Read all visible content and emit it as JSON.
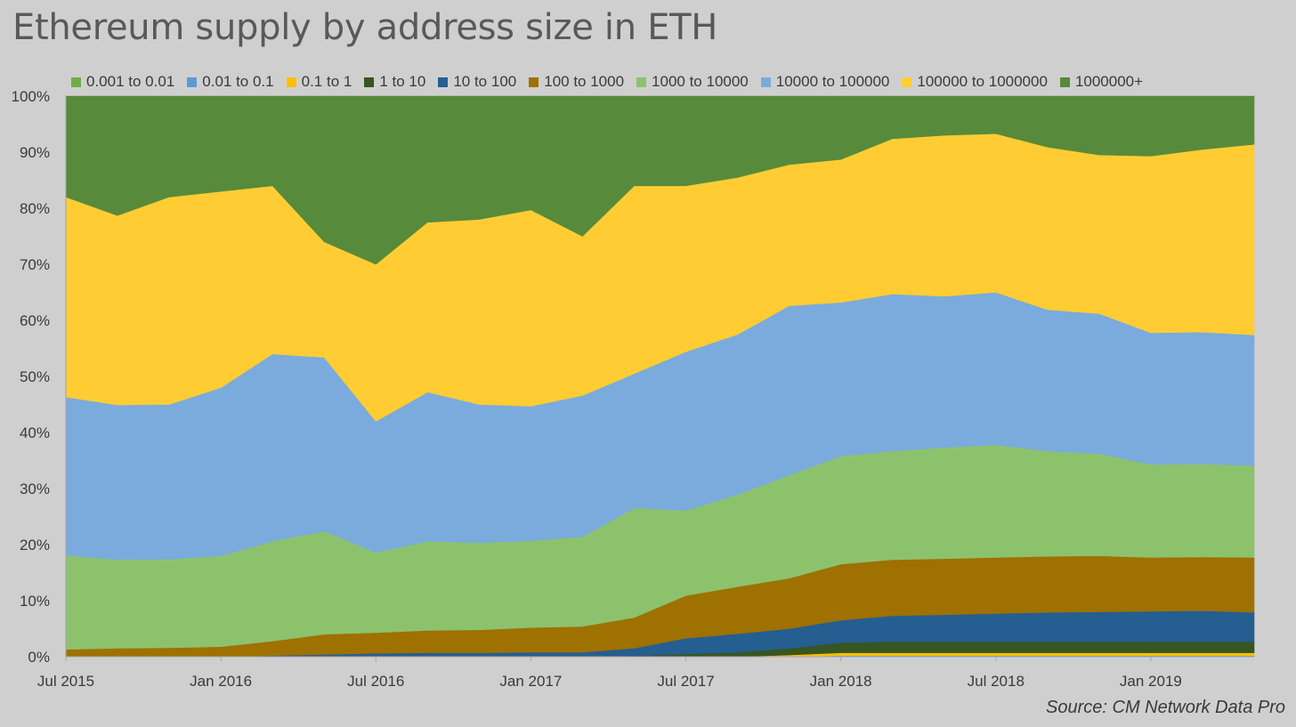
{
  "chart_data": {
    "type": "area",
    "title": "Ethereum supply by address size in ETH",
    "source": "Source: CM Network Data Pro",
    "stacked": true,
    "normalized": true,
    "legend_position": "top",
    "grid": false,
    "ylim": [
      0,
      100
    ],
    "y_ticks": [
      "0%",
      "10%",
      "20%",
      "30%",
      "40%",
      "50%",
      "60%",
      "70%",
      "80%",
      "90%",
      "100%"
    ],
    "x_ticks": [
      "Jul 2015",
      "Jan 2016",
      "Jul 2016",
      "Jan 2017",
      "Jul 2017",
      "Jan 2018",
      "Jul 2018",
      "Jan 2019"
    ],
    "x": [
      "2015-07",
      "2015-09",
      "2015-11",
      "2016-01",
      "2016-03",
      "2016-05",
      "2016-07",
      "2016-09",
      "2016-11",
      "2017-01",
      "2017-03",
      "2017-05",
      "2017-07",
      "2017-09",
      "2017-11",
      "2018-01",
      "2018-03",
      "2018-05",
      "2018-07",
      "2018-09",
      "2018-11",
      "2019-01",
      "2019-03",
      "2019-05"
    ],
    "series": [
      {
        "name": "0.001 to 0.01",
        "color": "#70ad47",
        "values": [
          0,
          0,
          0,
          0,
          0,
          0,
          0,
          0,
          0,
          0,
          0,
          0,
          0,
          0,
          0,
          0.1,
          0.1,
          0.1,
          0.1,
          0.1,
          0.1,
          0.1,
          0.1,
          0.1
        ]
      },
      {
        "name": "0.01 to 0.1",
        "color": "#5b9bd5",
        "values": [
          0,
          0,
          0,
          0,
          0,
          0,
          0,
          0,
          0,
          0,
          0,
          0,
          0,
          0,
          0,
          0.1,
          0.1,
          0.1,
          0.1,
          0.1,
          0.1,
          0.1,
          0.1,
          0.1
        ]
      },
      {
        "name": "0.1 to 1",
        "color": "#ffc000",
        "values": [
          0,
          0,
          0,
          0,
          0,
          0,
          0,
          0,
          0,
          0,
          0,
          0,
          0,
          0,
          0.3,
          0.5,
          0.5,
          0.5,
          0.5,
          0.5,
          0.5,
          0.5,
          0.5,
          0.5
        ]
      },
      {
        "name": "1 to 10",
        "color": "#375623",
        "values": [
          0,
          0,
          0,
          0,
          0,
          0,
          0,
          0,
          0,
          0,
          0,
          0.2,
          0.5,
          0.8,
          1.2,
          1.8,
          2.0,
          2.0,
          2.0,
          2.0,
          2.0,
          2.0,
          2.0,
          2.0
        ]
      },
      {
        "name": "10 to 100",
        "color": "#255e91",
        "values": [
          0,
          0,
          0,
          0,
          0.2,
          0.4,
          0.6,
          0.7,
          0.7,
          0.8,
          0.8,
          1.3,
          2.8,
          3.3,
          3.5,
          4.0,
          4.6,
          4.8,
          5.0,
          5.2,
          5.3,
          5.4,
          5.5,
          5.2
        ]
      },
      {
        "name": "100 to 1000",
        "color": "#9e7100",
        "values": [
          1.3,
          1.5,
          1.6,
          1.8,
          2.6,
          3.6,
          3.7,
          4.0,
          4.1,
          4.4,
          4.6,
          5.5,
          7.6,
          8.4,
          9.0,
          10.0,
          10.0,
          10.0,
          10.0,
          10.0,
          10.0,
          9.6,
          9.6,
          9.8
        ]
      },
      {
        "name": "1000 to 10000",
        "color": "#8dc26d",
        "values": [
          16.8,
          15.8,
          15.8,
          16.2,
          17.8,
          18.4,
          14.3,
          15.9,
          15.5,
          15.5,
          16.0,
          19.5,
          15.2,
          16.4,
          18.4,
          19.3,
          19.4,
          19.8,
          20.1,
          18.8,
          18.2,
          16.6,
          16.6,
          16.4
        ]
      },
      {
        "name": "10000 to 100000",
        "color": "#7aabdc",
        "values": [
          28.2,
          27.6,
          27.6,
          30.0,
          33.4,
          31.0,
          23.4,
          26.6,
          24.7,
          24.0,
          25.2,
          24.0,
          28.3,
          28.6,
          30.2,
          27.4,
          28.0,
          27.0,
          27.2,
          25.2,
          25.0,
          23.5,
          23.5,
          23.3
        ]
      },
      {
        "name": "100000 to 1000000",
        "color": "#ffcd33",
        "values": [
          35.7,
          33.8,
          37.0,
          35.0,
          30.0,
          20.6,
          28.0,
          30.3,
          33.0,
          35.0,
          28.4,
          33.5,
          29.6,
          28.0,
          25.2,
          25.5,
          27.7,
          28.7,
          28.3,
          29.0,
          28.3,
          31.5,
          32.6,
          34.0
        ]
      },
      {
        "name": "1000000+",
        "color": "#588a3b",
        "values": [
          18.0,
          21.3,
          18.0,
          17.0,
          16.0,
          26.0,
          30.0,
          22.5,
          22.0,
          20.3,
          25.0,
          16.0,
          16.0,
          14.5,
          12.2,
          10.8,
          7.6,
          7.0,
          6.8,
          9.2,
          10.3,
          8.8,
          9.1,
          8.2
        ]
      }
    ]
  }
}
